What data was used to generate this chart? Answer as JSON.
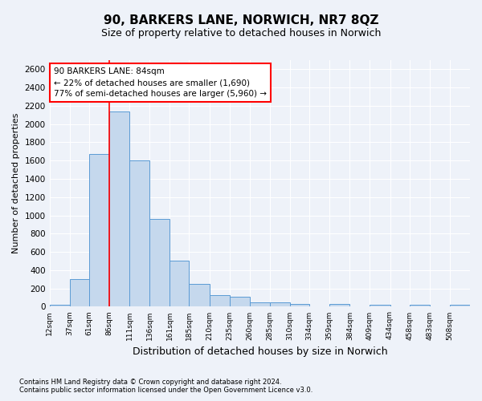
{
  "title": "90, BARKERS LANE, NORWICH, NR7 8QZ",
  "subtitle": "Size of property relative to detached houses in Norwich",
  "xlabel": "Distribution of detached houses by size in Norwich",
  "ylabel": "Number of detached properties",
  "footnote1": "Contains HM Land Registry data © Crown copyright and database right 2024.",
  "footnote2": "Contains public sector information licensed under the Open Government Licence v3.0.",
  "annotation_line1": "90 BARKERS LANE: 84sqm",
  "annotation_line2": "← 22% of detached houses are smaller (1,690)",
  "annotation_line3": "77% of semi-detached houses are larger (5,960) →",
  "bar_color": "#c5d8ed",
  "bar_edge_color": "#5b9bd5",
  "redline_x": 86,
  "categories": [
    "12sqm",
    "37sqm",
    "61sqm",
    "86sqm",
    "111sqm",
    "136sqm",
    "161sqm",
    "185sqm",
    "210sqm",
    "235sqm",
    "260sqm",
    "285sqm",
    "310sqm",
    "334sqm",
    "359sqm",
    "384sqm",
    "409sqm",
    "434sqm",
    "458sqm",
    "483sqm",
    "508sqm"
  ],
  "bin_edges": [
    12,
    37,
    61,
    86,
    111,
    136,
    161,
    185,
    210,
    235,
    260,
    285,
    310,
    334,
    359,
    384,
    409,
    434,
    458,
    483,
    508,
    533
  ],
  "values": [
    25,
    300,
    1670,
    2140,
    1600,
    960,
    500,
    250,
    130,
    105,
    50,
    50,
    30,
    0,
    30,
    0,
    25,
    0,
    25,
    0,
    25
  ],
  "ylim": [
    0,
    2700
  ],
  "yticks": [
    0,
    200,
    400,
    600,
    800,
    1000,
    1200,
    1400,
    1600,
    1800,
    2000,
    2200,
    2400,
    2600
  ],
  "background_color": "#eef2f9",
  "grid_color": "#ffffff",
  "title_fontsize": 11,
  "subtitle_fontsize": 9,
  "xlabel_fontsize": 9,
  "ylabel_fontsize": 8
}
